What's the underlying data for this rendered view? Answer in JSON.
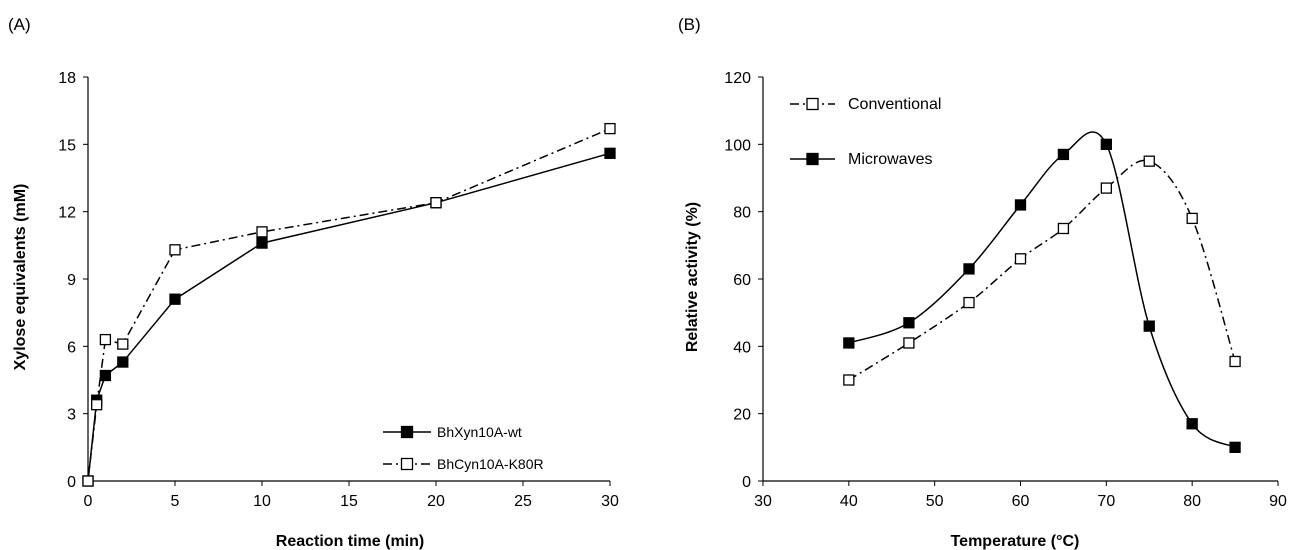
{
  "chart_data": [
    {
      "panel_label": "(A)",
      "type": "line",
      "xlabel": "Reaction time (min)",
      "ylabel": "Xylose equivalents (mM)",
      "xlim": [
        0,
        30
      ],
      "ylim": [
        0,
        18
      ],
      "xticks": [
        "0",
        "5",
        "10",
        "15",
        "20",
        "25",
        "30"
      ],
      "yticks": [
        "0",
        "3",
        "6",
        "9",
        "12",
        "15",
        "18"
      ],
      "legend_position": "bottom-right",
      "series": [
        {
          "name": "BhXyn10A-wt",
          "marker": "filled-square",
          "line_style": "solid",
          "color": "#000000",
          "x": [
            0,
            0.5,
            1,
            2,
            5,
            10,
            20,
            30
          ],
          "y": [
            0,
            3.6,
            4.7,
            5.3,
            8.1,
            10.6,
            12.4,
            14.6
          ]
        },
        {
          "name": "BhCyn10A-K80R",
          "marker": "open-square",
          "line_style": "dash-dot",
          "color": "#000000",
          "x": [
            0,
            0.5,
            1,
            2,
            5,
            10,
            20,
            30
          ],
          "y": [
            0,
            3.4,
            6.3,
            6.1,
            10.3,
            11.1,
            12.4,
            15.7
          ]
        }
      ]
    },
    {
      "panel_label": "(B)",
      "type": "line",
      "xlabel": "Temperature (°C)",
      "ylabel": "Relative activity (%)",
      "xlim": [
        30,
        90
      ],
      "ylim": [
        0,
        120
      ],
      "xticks": [
        "30",
        "40",
        "50",
        "60",
        "70",
        "80",
        "90"
      ],
      "yticks": [
        "0",
        "20",
        "40",
        "60",
        "80",
        "100",
        "120"
      ],
      "legend_position": "top-left",
      "smooth": true,
      "series": [
        {
          "name": "Conventional",
          "marker": "open-square",
          "line_style": "dash-dot",
          "color": "#000000",
          "x": [
            40,
            47,
            54,
            60,
            65,
            70,
            75,
            80,
            85
          ],
          "y": [
            30,
            41,
            53,
            66,
            75,
            87,
            95,
            78,
            35.5
          ]
        },
        {
          "name": "Microwaves",
          "marker": "filled-square",
          "line_style": "solid",
          "color": "#000000",
          "x": [
            40,
            47,
            54,
            60,
            65,
            70,
            75,
            80,
            85
          ],
          "y": [
            41,
            47,
            63,
            82,
            97,
            100,
            46,
            17,
            10
          ]
        }
      ]
    }
  ]
}
